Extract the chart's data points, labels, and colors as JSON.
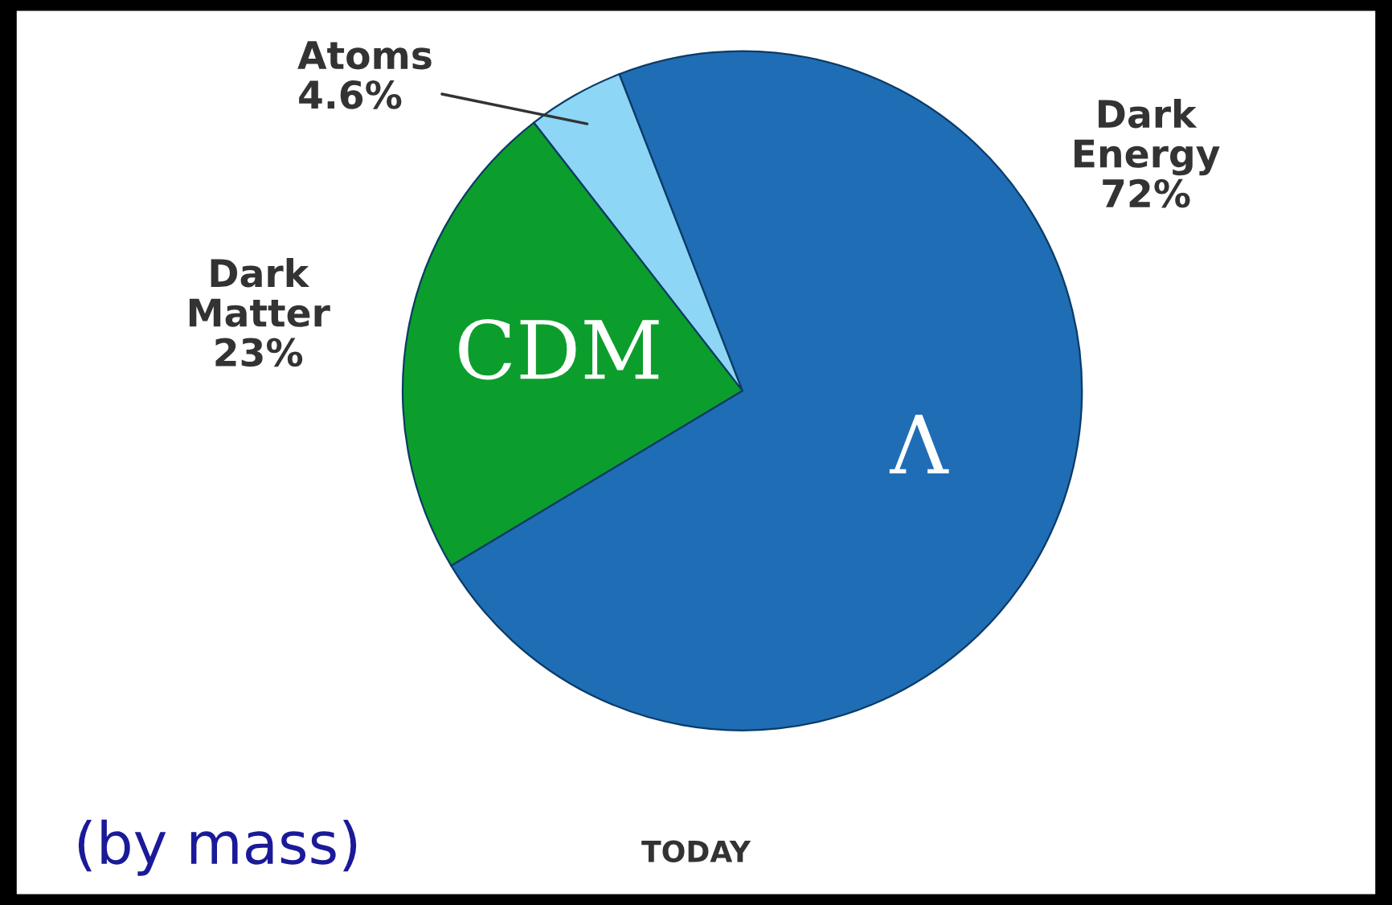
{
  "chart_data": {
    "type": "pie",
    "categories": [
      "Dark Energy",
      "Atoms",
      "Dark Matter"
    ],
    "values": [
      72,
      4.6,
      23
    ],
    "value_labels": [
      "72%",
      "4.6%",
      "23%"
    ],
    "colors": [
      "#1f6db5",
      "#8ed6f6",
      "#0c9e2c"
    ],
    "annotations": [
      {
        "text": "Λ",
        "x": "Dark Energy"
      },
      {
        "text": "CDM",
        "x": "Dark Matter"
      },
      "TODAY",
      "(by mass)"
    ]
  }
}
